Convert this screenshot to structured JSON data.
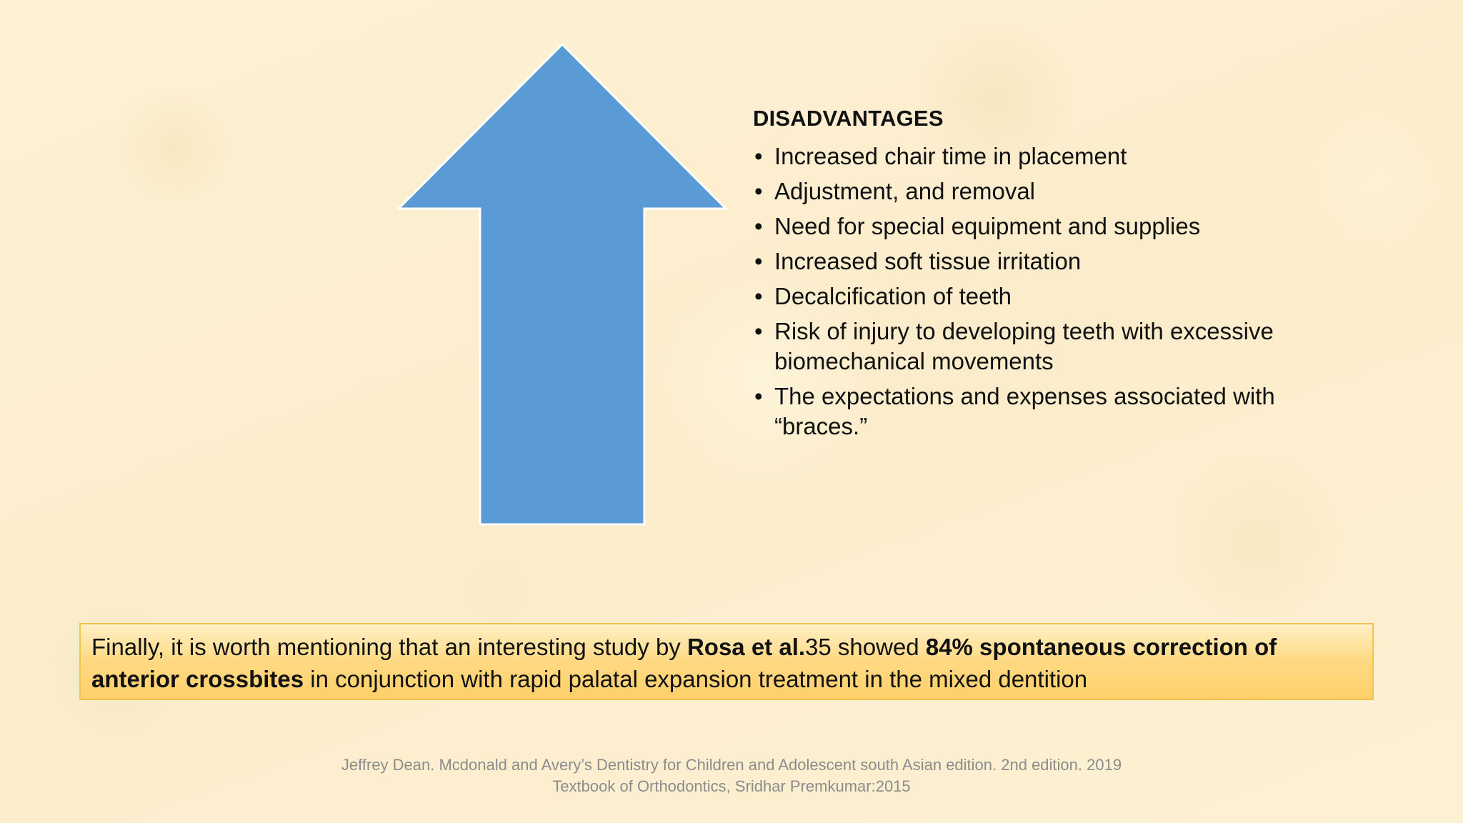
{
  "slide": {
    "arrow": {
      "icon": "up-arrow-icon",
      "fill_color": "#5b9bd5",
      "stroke_color": "#ffffff"
    },
    "disadvantages": {
      "heading": "DISADVANTAGES",
      "bullet_char": "•",
      "items": [
        "Increased chair time in placement",
        "Adjustment, and removal",
        "Need for special equipment and supplies",
        "Increased soft tissue irritation",
        "Decalcification of teeth",
        "Risk of injury to developing teeth with excessive biomechanical movements",
        "The expectations and expenses associated with “braces.”"
      ]
    },
    "note": {
      "part1": "Finally, it is worth mentioning that an interesting study by ",
      "part2_bold": "Rosa et al.",
      "part3": "35 showed ",
      "part4_bold": "84% spontaneous correction of anterior crossbites",
      "part5": " in conjunction with rapid palatal expansion treatment in the mixed dentition",
      "box_color": "#ffd982"
    },
    "references": {
      "line1": "Jeffrey Dean. Mcdonald and Avery’s Dentistry for Children and Adolescent south Asian edition. 2nd edition. 2019",
      "line2": "Textbook of Orthodontics, Sridhar Premkumar:2015"
    }
  }
}
